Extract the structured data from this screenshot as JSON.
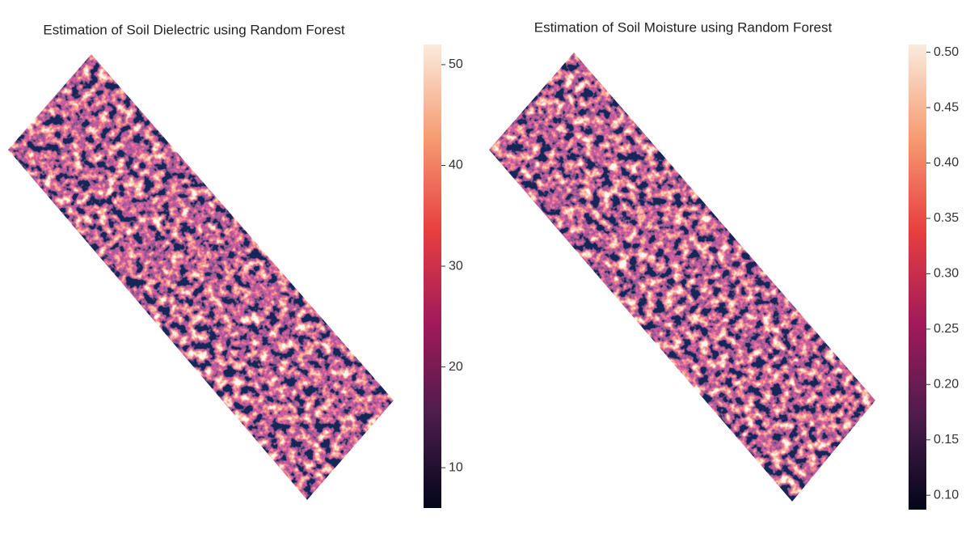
{
  "chart_data": [
    {
      "type": "heatmap",
      "title": "Estimation of Soil Dielectric using Random Forest",
      "colors": [
        "#03051a",
        "#4c1d4b",
        "#a11a5b",
        "#e83f3f",
        "#f69c73",
        "#faebdd"
      ],
      "zlim": [
        6,
        52
      ],
      "zticks": [
        10,
        20,
        30,
        40,
        50
      ]
    },
    {
      "type": "heatmap",
      "title": "Estimation of Soil Moisture using Random Forest",
      "colors": [
        "#03051a",
        "#4c1d4b",
        "#a11a5b",
        "#e83f3f",
        "#f69c73",
        "#faebdd"
      ],
      "zlim": [
        0.087,
        0.507
      ],
      "zticks": [
        {
          "value": 0.1,
          "label": "0.10"
        },
        0.15,
        {
          "value": 0.2,
          "label": "0.20"
        },
        0.25,
        {
          "value": 0.3,
          "label": "0.30"
        },
        0.35,
        {
          "value": 0.4,
          "label": "0.40"
        },
        0.45,
        {
          "value": 0.5,
          "label": "0.50"
        }
      ]
    }
  ]
}
